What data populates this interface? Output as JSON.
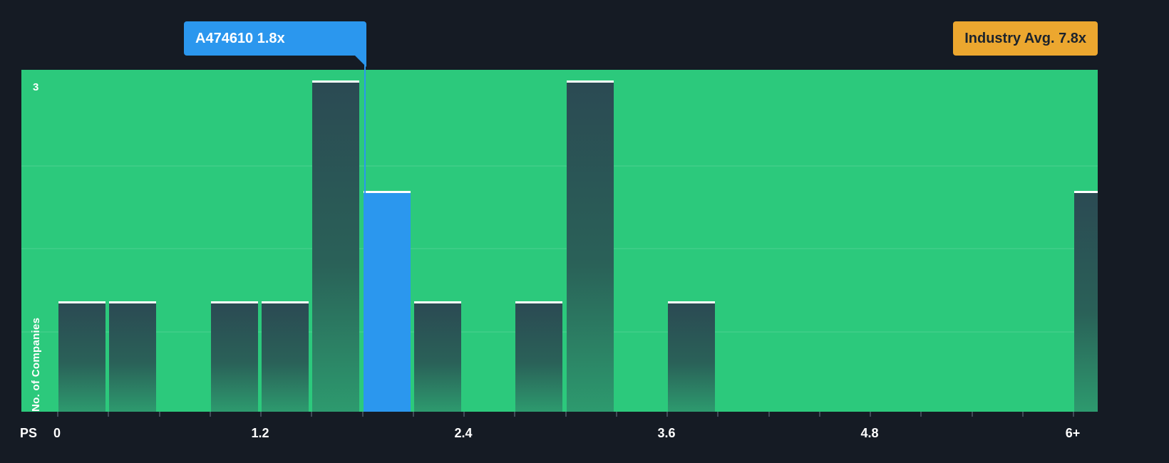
{
  "page": {
    "background_color": "#151B24"
  },
  "tooltip": {
    "label": "A474610 1.8x",
    "color": "#2B97EE"
  },
  "industry_badge": {
    "label": "Industry Avg. 7.8x",
    "color": "#ECA72F"
  },
  "axis": {
    "ylabel": "No. of Companies",
    "xlabel": "PS",
    "ytick_top": "3"
  },
  "colors": {
    "plot_background": "#2CC97C",
    "bar_dark_top": "#2B4A53",
    "highlight_blue": "#2B97EE",
    "industry_orange": "#ECA72F",
    "text_white": "#FFFFFF"
  },
  "chart_data": {
    "type": "bar",
    "subtype": "histogram",
    "title": "",
    "xlabel": "PS",
    "ylabel": "No. of Companies",
    "ylim": [
      0,
      3
    ],
    "xlim": [
      0,
      6.36
    ],
    "bin_width": 0.3,
    "x_tick_labels": [
      "0",
      "1.2",
      "2.4",
      "3.6",
      "4.8",
      "6+"
    ],
    "x_tick_values": [
      0,
      1.2,
      2.4,
      3.6,
      4.8,
      6
    ],
    "y_tick_labels": [
      "3"
    ],
    "grid": "subtle-horizontal",
    "legend_position": "none",
    "bars": [
      {
        "x": 0.0,
        "value": 1,
        "highlight": false
      },
      {
        "x": 0.3,
        "value": 1,
        "highlight": false
      },
      {
        "x": 0.9,
        "value": 1,
        "highlight": false
      },
      {
        "x": 1.2,
        "value": 1,
        "highlight": false
      },
      {
        "x": 1.5,
        "value": 3,
        "highlight": false
      },
      {
        "x": 1.8,
        "value": 2,
        "highlight": true
      },
      {
        "x": 2.1,
        "value": 1,
        "highlight": false
      },
      {
        "x": 2.7,
        "value": 1,
        "highlight": false
      },
      {
        "x": 3.0,
        "value": 3,
        "highlight": false
      },
      {
        "x": 3.6,
        "value": 1,
        "highlight": false
      },
      {
        "x": 6.0,
        "value": 2,
        "highlight": false
      }
    ],
    "company_marker": {
      "label": "A474610 1.8x",
      "value": 1.8
    },
    "industry_average": {
      "label": "Industry Avg. 7.8x",
      "value": 7.8
    }
  }
}
